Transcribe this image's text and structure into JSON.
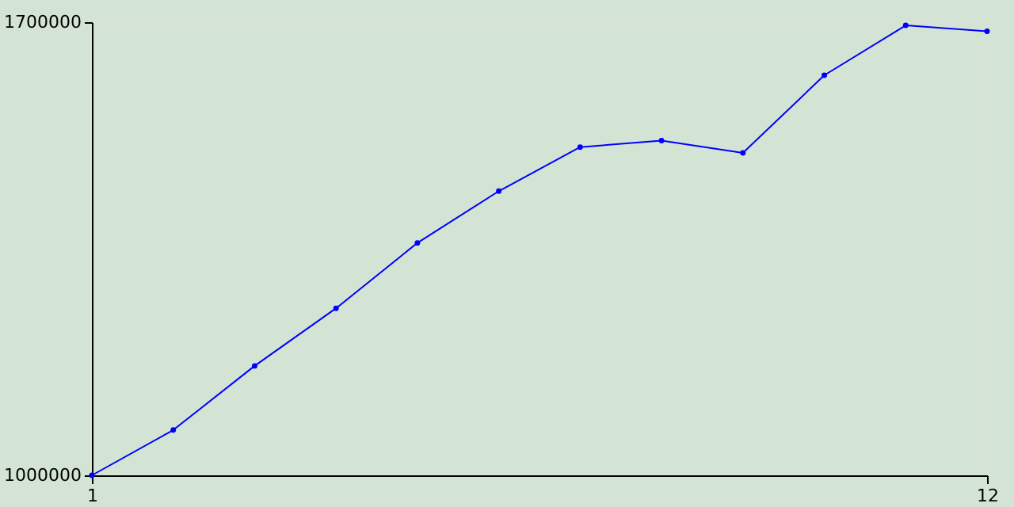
{
  "chart_data": {
    "type": "line",
    "x": [
      1,
      2,
      3,
      4,
      5,
      6,
      7,
      8,
      9,
      10,
      11,
      12
    ],
    "series": [
      {
        "color": "#0000ff",
        "values": [
          1000000,
          1070000,
          1169000,
          1258000,
          1359000,
          1439000,
          1507000,
          1517000,
          1498000,
          1618000,
          1695000,
          1686000
        ]
      }
    ],
    "xlim": [
      1,
      12
    ],
    "xticks": [
      1,
      12
    ],
    "ylim": [
      1000000,
      1700000
    ],
    "yticks": [
      1000000,
      1700000
    ],
    "marker": "circle",
    "line_style": "solid"
  }
}
